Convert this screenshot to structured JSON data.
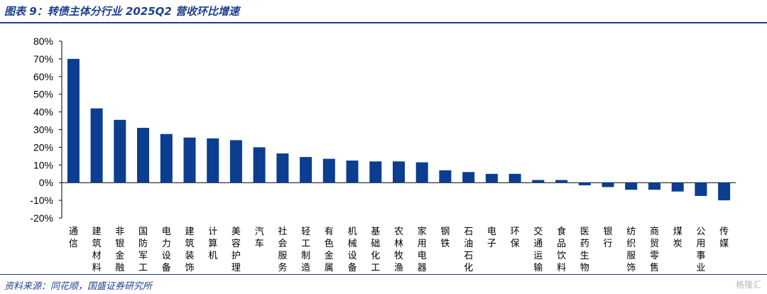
{
  "header": {
    "title": "图表 9：转债主体分行业 2025Q2 营收环比增速"
  },
  "footer": {
    "source": "资料来源：同花顺，国盛证券研究所",
    "watermark": "格隆汇"
  },
  "colors": {
    "bar": "#0b3d91",
    "text": "#000000",
    "accent": "#1f3f8f"
  },
  "chart_data": {
    "type": "bar",
    "title": "转债主体分行业 2025Q2 营收环比增速",
    "ylim": [
      -20,
      80
    ],
    "yticks": [
      "80%",
      "70%",
      "60%",
      "50%",
      "40%",
      "30%",
      "20%",
      "10%",
      "0%",
      "-10%",
      "-20%"
    ],
    "yticks_values": [
      80,
      70,
      60,
      50,
      40,
      30,
      20,
      10,
      0,
      -10,
      -20
    ],
    "grid": false,
    "categories": [
      "通信",
      "建筑材料",
      "非银金融",
      "国防军工",
      "电力设备",
      "建筑装饰",
      "计算机",
      "美容护理",
      "汽车",
      "社会服务",
      "轻工制造",
      "有色金属",
      "机械设备",
      "基础化工",
      "农林牧渔",
      "家用电器",
      "钢铁",
      "石油石化",
      "电子",
      "环保",
      "交通运输",
      "食品饮料",
      "医药生物",
      "银行",
      "纺织服饰",
      "商贸零售",
      "煤炭",
      "公用事业",
      "传媒"
    ],
    "values": [
      70.0,
      42.0,
      35.5,
      31.0,
      27.5,
      25.5,
      25.0,
      24.0,
      20.0,
      16.5,
      14.5,
      13.5,
      12.5,
      12.0,
      12.0,
      11.5,
      7.0,
      6.0,
      5.0,
      5.0,
      1.5,
      1.5,
      -1.5,
      -2.5,
      -4.0,
      -4.0,
      -5.0,
      -7.5,
      -10.0
    ]
  }
}
